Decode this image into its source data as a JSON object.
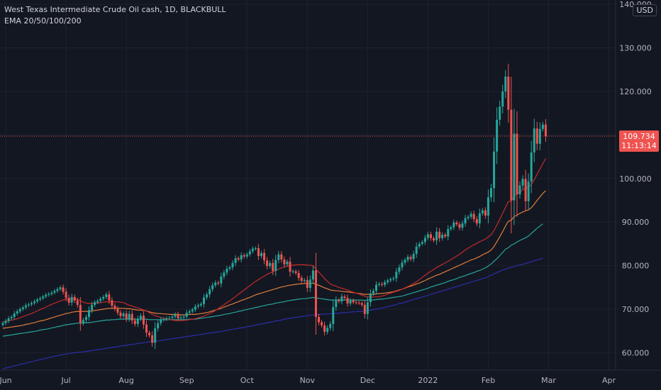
{
  "legend": {
    "symbol": "West Texas Intermediate Crude Oil cash, 1D, BLACKBULL",
    "indicator": "EMA 20/50/100/200"
  },
  "currency": "USD",
  "last_price": {
    "price": "109.734",
    "countdown": "11:13:14",
    "value": 109.734
  },
  "colors": {
    "background": "#131722",
    "grid": "#1e222d",
    "up": "#26a69a",
    "down": "#ef5350",
    "ema20": "#c42a2a",
    "ema50": "#e07b39",
    "ema100": "#26a69a",
    "ema200": "#2a2ea8",
    "axis_text": "#b2b5be"
  },
  "chart_data": {
    "type": "candlestick",
    "ylim": [
      56.0,
      141.0
    ],
    "y_ticks": [
      "60.000",
      "70.000",
      "80.000",
      "90.000",
      "100.000",
      "110.000",
      "120.000",
      "130.000",
      "140.000"
    ],
    "x_ticks": [
      {
        "label": "Jun",
        "index": 1
      },
      {
        "label": "Jul",
        "index": 22
      },
      {
        "label": "Aug",
        "index": 43
      },
      {
        "label": "Sep",
        "index": 64
      },
      {
        "label": "Oct",
        "index": 85
      },
      {
        "label": "Nov",
        "index": 106
      },
      {
        "label": "Dec",
        "index": 127
      },
      {
        "label": "2022",
        "index": 148
      },
      {
        "label": "Feb",
        "index": 169
      },
      {
        "label": "Mar",
        "index": 190
      },
      {
        "label": "Apr",
        "index": 211
      }
    ],
    "close": [
      66.8,
      67.3,
      67.9,
      68.2,
      69.0,
      69.5,
      70.0,
      70.4,
      70.9,
      71.1,
      71.4,
      71.8,
      72.2,
      72.5,
      72.9,
      73.3,
      73.5,
      73.8,
      74.2,
      74.6,
      75.0,
      74.0,
      72.6,
      71.5,
      72.8,
      72.0,
      71.0,
      66.8,
      67.5,
      68.2,
      69.8,
      71.0,
      71.6,
      71.9,
      72.4,
      72.8,
      73.4,
      72.0,
      70.8,
      70.1,
      69.2,
      68.4,
      69.0,
      67.8,
      68.9,
      67.4,
      66.6,
      67.8,
      68.5,
      66.5,
      64.6,
      64.0,
      62.3,
      65.6,
      66.8,
      67.6,
      67.7,
      67.9,
      68.0,
      68.3,
      68.8,
      67.9,
      68.1,
      68.3,
      69.2,
      69.5,
      69.9,
      70.6,
      70.9,
      71.2,
      72.7,
      73.4,
      74.6,
      75.5,
      76.1,
      75.9,
      77.5,
      78.4,
      79.3,
      79.6,
      80.6,
      81.7,
      81.4,
      82.4,
      82.1,
      82.6,
      83.3,
      83.9,
      84.0,
      82.2,
      82.9,
      81.2,
      79.9,
      80.6,
      78.8,
      81.3,
      82.6,
      81.4,
      80.3,
      80.9,
      78.6,
      78.7,
      78.3,
      77.2,
      76.5,
      76.7,
      74.9,
      76.8,
      78.9,
      68.2,
      67.0,
      66.3,
      64.8,
      65.7,
      66.6,
      70.5,
      72.1,
      71.8,
      72.9,
      72.6,
      71.3,
      72.0,
      71.6,
      71.5,
      71.4,
      71.0,
      68.9,
      71.6,
      73.6,
      74.2,
      75.6,
      75.8,
      75.6,
      76.2,
      76.6,
      76.9,
      77.1,
      78.6,
      79.6,
      80.7,
      81.3,
      82.0,
      81.5,
      82.7,
      84.4,
      85.0,
      85.4,
      86.4,
      87.2,
      86.3,
      85.8,
      87.8,
      86.3,
      87.1,
      86.7,
      88.4,
      88.8,
      89.9,
      89.5,
      88.7,
      89.7,
      90.9,
      91.2,
      91.9,
      90.7,
      89.7,
      92.0,
      92.7,
      91.5,
      95.7,
      97.8,
      106.2,
      113.5,
      116.5,
      120.0,
      123.4,
      115.8,
      95.0,
      110.3,
      96.4,
      98.4,
      99.9,
      94.8,
      99.3,
      106.0,
      111.5,
      108.0,
      111.4,
      112.4,
      109.7
    ],
    "ema20": [
      67.1,
      67.2,
      67.3,
      67.5,
      67.6,
      67.8,
      68.0,
      68.3,
      68.5,
      68.8,
      69.0,
      69.3,
      69.6,
      69.9,
      70.2,
      70.5,
      70.8,
      71.1,
      71.4,
      71.6,
      71.9,
      72.1,
      72.3,
      72.3,
      72.3,
      72.3,
      72.3,
      71.9,
      71.6,
      71.4,
      71.3,
      71.3,
      71.4,
      71.4,
      71.5,
      71.6,
      71.7,
      71.7,
      71.8,
      71.7,
      71.7,
      71.6,
      71.5,
      71.2,
      70.9,
      70.7,
      70.5,
      70.3,
      70.1,
      69.8,
      69.6,
      69.2,
      68.8,
      68.5,
      68.3,
      68.1,
      67.9,
      67.7,
      67.6,
      67.5,
      67.4,
      67.4,
      67.4,
      67.4,
      67.5,
      67.6,
      67.7,
      67.8,
      68.0,
      68.2,
      68.4,
      68.7,
      69.0,
      69.3,
      69.7,
      70.1,
      70.6,
      71.0,
      71.5,
      71.9,
      72.4,
      72.9,
      73.4,
      73.9,
      74.4,
      74.9,
      75.4,
      75.9,
      76.4,
      76.8,
      77.2,
      77.6,
      78.0,
      78.3,
      78.6,
      78.9,
      79.2,
      79.5,
      79.7,
      79.9,
      80.0,
      80.1,
      80.2,
      80.2,
      80.2,
      80.2,
      80.1,
      80.1,
      80.0,
      79.2,
      78.5,
      77.8,
      77.0,
      76.4,
      75.8,
      75.5,
      75.3,
      75.0,
      74.8,
      74.6,
      74.4,
      74.1,
      73.9,
      73.7,
      73.5,
      73.2,
      73.0,
      72.8,
      72.8,
      72.8,
      72.8,
      72.9,
      73.0,
      73.2,
      73.5,
      73.7,
      73.9,
      74.1,
      74.3,
      74.6,
      74.9,
      75.2,
      75.5,
      75.9,
      76.3,
      76.8,
      77.3,
      77.8,
      78.3,
      78.7,
      79.1,
      79.6,
      79.9,
      80.3,
      80.6,
      81.0,
      81.4,
      81.8,
      82.2,
      82.6,
      83.1,
      83.6,
      84.0,
      84.4,
      84.8,
      85.1,
      85.5,
      85.8,
      86.1,
      86.6,
      87.1,
      88.1,
      89.3,
      90.6,
      92.0,
      93.4,
      94.7,
      94.8,
      96.0,
      96.4,
      96.9,
      97.4,
      97.8,
      98.0,
      98.6,
      99.7,
      101.0,
      102.2,
      103.4,
      104.6
    ],
    "ema50": [
      65.6,
      65.7,
      65.8,
      65.9,
      66.0,
      66.1,
      66.2,
      66.3,
      66.5,
      66.6,
      66.8,
      66.9,
      67.1,
      67.3,
      67.4,
      67.6,
      67.8,
      68.0,
      68.2,
      68.4,
      68.6,
      68.8,
      69.0,
      69.1,
      69.3,
      69.4,
      69.5,
      69.4,
      69.5,
      69.5,
      69.5,
      69.6,
      69.7,
      69.8,
      69.9,
      70.0,
      70.1,
      70.2,
      70.2,
      70.2,
      70.2,
      70.2,
      70.2,
      70.1,
      70.1,
      70.0,
      69.9,
      69.8,
      69.8,
      69.7,
      69.6,
      69.4,
      69.2,
      69.1,
      69.0,
      69.0,
      68.9,
      68.9,
      68.8,
      68.8,
      68.8,
      68.8,
      68.7,
      68.7,
      68.7,
      68.8,
      68.8,
      68.8,
      68.9,
      69.0,
      69.1,
      69.2,
      69.4,
      69.6,
      69.8,
      70.0,
      70.2,
      70.5,
      70.7,
      71.0,
      71.2,
      71.5,
      71.7,
      72.0,
      72.2,
      72.5,
      72.7,
      73.0,
      73.3,
      73.5,
      73.7,
      73.9,
      74.1,
      74.3,
      74.5,
      74.7,
      74.9,
      75.1,
      75.2,
      75.4,
      75.5,
      75.6,
      75.7,
      75.8,
      75.8,
      75.9,
      75.9,
      75.9,
      76.0,
      75.7,
      75.5,
      75.2,
      74.9,
      74.7,
      74.4,
      74.3,
      74.2,
      74.2,
      74.1,
      74.0,
      74.0,
      73.9,
      73.8,
      73.7,
      73.6,
      73.5,
      73.4,
      73.4,
      73.4,
      73.4,
      73.5,
      73.6,
      73.6,
      73.7,
      73.8,
      73.9,
      74.0,
      74.2,
      74.4,
      74.6,
      74.8,
      75.1,
      75.3,
      75.5,
      75.8,
      76.0,
      76.3,
      76.6,
      76.9,
      77.2,
      77.5,
      77.8,
      78.0,
      78.3,
      78.6,
      78.9,
      79.2,
      79.5,
      79.8,
      80.1,
      80.4,
      80.7,
      81.0,
      81.3,
      81.5,
      81.8,
      82.1,
      82.5,
      82.8,
      83.1,
      83.6,
      84.4,
      85.5,
      86.6,
      87.8,
      89.1,
      90.2,
      90.4,
      91.3,
      91.6,
      92.0,
      92.3,
      92.6,
      92.8,
      93.3,
      94.1,
      95.0,
      95.8,
      96.6,
      97.2
    ],
    "ema100": [
      63.8,
      63.9,
      64.0,
      64.1,
      64.2,
      64.3,
      64.4,
      64.5,
      64.6,
      64.7,
      64.8,
      64.9,
      65.0,
      65.2,
      65.3,
      65.4,
      65.5,
      65.7,
      65.8,
      66.0,
      66.1,
      66.3,
      66.4,
      66.5,
      66.6,
      66.7,
      66.8,
      66.8,
      66.8,
      66.9,
      66.9,
      67.0,
      67.1,
      67.2,
      67.3,
      67.4,
      67.5,
      67.5,
      67.6,
      67.6,
      67.7,
      67.7,
      67.7,
      67.7,
      67.7,
      67.7,
      67.7,
      67.7,
      67.7,
      67.7,
      67.7,
      67.6,
      67.6,
      67.6,
      67.6,
      67.6,
      67.6,
      67.6,
      67.6,
      67.6,
      67.6,
      67.6,
      67.6,
      67.6,
      67.6,
      67.7,
      67.7,
      67.7,
      67.8,
      67.9,
      68.0,
      68.1,
      68.2,
      68.3,
      68.4,
      68.5,
      68.6,
      68.8,
      68.9,
      69.0,
      69.2,
      69.3,
      69.5,
      69.6,
      69.8,
      69.9,
      70.1,
      70.2,
      70.4,
      70.5,
      70.7,
      70.8,
      71.0,
      71.1,
      71.2,
      71.4,
      71.5,
      71.6,
      71.7,
      71.9,
      72.0,
      72.1,
      72.2,
      72.3,
      72.4,
      72.4,
      72.5,
      72.6,
      72.7,
      72.6,
      72.5,
      72.4,
      72.3,
      72.2,
      72.1,
      72.1,
      72.1,
      72.1,
      72.1,
      72.1,
      72.1,
      72.1,
      72.1,
      72.1,
      72.1,
      72.1,
      72.0,
      72.1,
      72.1,
      72.1,
      72.2,
      72.3,
      72.3,
      72.4,
      72.5,
      72.6,
      72.7,
      72.8,
      72.9,
      73.0,
      73.2,
      73.4,
      73.6,
      73.8,
      74.0,
      74.2,
      74.4,
      74.6,
      74.8,
      75.1,
      75.3,
      75.5,
      75.7,
      75.9,
      76.1,
      76.4,
      76.6,
      76.8,
      77.0,
      77.3,
      77.5,
      77.7,
      78.0,
      78.2,
      78.4,
      78.7,
      78.9,
      79.2,
      79.5,
      79.9,
      80.4,
      81.0,
      81.6,
      82.3,
      83.0,
      83.8,
      84.1,
      84.7,
      85.0,
      85.4,
      85.8,
      86.1,
      86.4,
      86.8,
      87.4,
      88.0,
      88.6,
      89.1,
      89.6
    ],
    "ema200": [
      56.3,
      56.5,
      56.6,
      56.8,
      57.0,
      57.1,
      57.3,
      57.5,
      57.6,
      57.8,
      57.9,
      58.1,
      58.3,
      58.4,
      58.6,
      58.7,
      58.9,
      59.0,
      59.2,
      59.3,
      59.5,
      59.6,
      59.7,
      59.8,
      59.9,
      60.0,
      60.1,
      60.1,
      60.2,
      60.3,
      60.4,
      60.5,
      60.6,
      60.7,
      60.8,
      60.9,
      61.0,
      61.1,
      61.2,
      61.3,
      61.4,
      61.5,
      61.6,
      61.7,
      61.8,
      61.9,
      62.0,
      62.1,
      62.2,
      62.3,
      62.4,
      62.5,
      62.6,
      62.6,
      62.7,
      62.8,
      62.9,
      63.0,
      63.1,
      63.2,
      63.3,
      63.4,
      63.5,
      63.6,
      63.7,
      63.8,
      63.9,
      64.0,
      64.1,
      64.2,
      64.3,
      64.4,
      64.5,
      64.6,
      64.7,
      64.8,
      64.9,
      65.0,
      65.1,
      65.3,
      65.4,
      65.5,
      65.6,
      65.7,
      65.8,
      66.0,
      66.1,
      66.2,
      66.3,
      66.5,
      66.6,
      66.7,
      66.9,
      67.0,
      67.1,
      67.3,
      67.4,
      67.5,
      67.7,
      67.8,
      67.9,
      68.0,
      68.1,
      68.2,
      68.3,
      68.4,
      68.5,
      68.6,
      68.7,
      68.7,
      68.8,
      68.8,
      68.9,
      68.9,
      69.0,
      69.0,
      69.1,
      69.1,
      69.2,
      69.2,
      69.3,
      69.3,
      69.4,
      69.4,
      69.5,
      69.5,
      69.6,
      69.7,
      69.8,
      69.9,
      70.0,
      70.1,
      70.3,
      70.4,
      70.6,
      70.7,
      70.9,
      71.1,
      71.3,
      71.4,
      71.6,
      71.8,
      72.0,
      72.2,
      72.4,
      72.6,
      72.8,
      73.0,
      73.2,
      73.4,
      73.6,
      73.8,
      74.0,
      74.2,
      74.4,
      74.6,
      74.8,
      75.0,
      75.2,
      75.4,
      75.6,
      75.8,
      76.0,
      76.2,
      76.4,
      76.6,
      76.8,
      77.0,
      77.2,
      77.5,
      77.8,
      78.1,
      78.4,
      78.7,
      79.0,
      79.2,
      79.4,
      79.6,
      79.8,
      80.0,
      80.2,
      80.3,
      80.5,
      80.7,
      80.9,
      81.1,
      81.3,
      81.5,
      81.7
    ]
  }
}
